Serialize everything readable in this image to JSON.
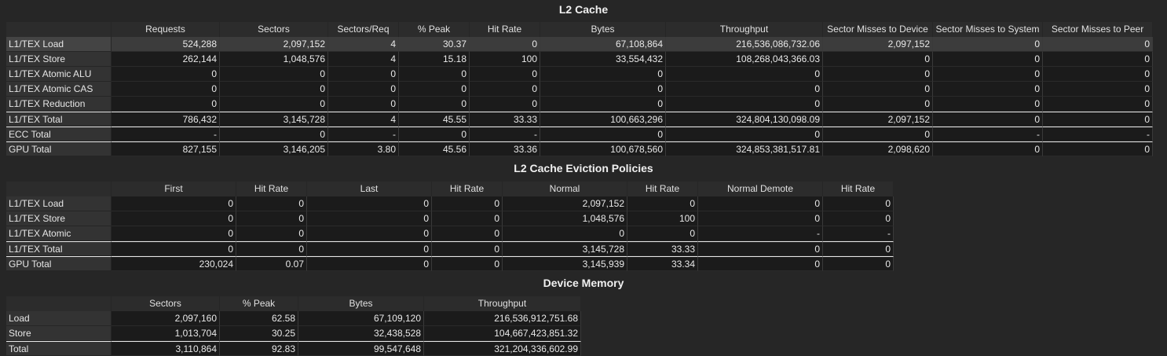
{
  "l2_cache": {
    "title": "L2 Cache",
    "columns": [
      "Requests",
      "Sectors",
      "Sectors/Req",
      "% Peak",
      "Hit Rate",
      "Bytes",
      "Throughput",
      "Sector Misses to Device",
      "Sector Misses to System",
      "Sector Misses to Peer"
    ],
    "rows": [
      {
        "label": "L1/TEX Load",
        "values": [
          "524,288",
          "2,097,152",
          "4",
          "30.37",
          "0",
          "67,108,864",
          "216,536,086,732.06",
          "2,097,152",
          "0",
          "0"
        ]
      },
      {
        "label": "L1/TEX Store",
        "values": [
          "262,144",
          "1,048,576",
          "4",
          "15.18",
          "100",
          "33,554,432",
          "108,268,043,366.03",
          "0",
          "0",
          "0"
        ]
      },
      {
        "label": "L1/TEX Atomic ALU",
        "values": [
          "0",
          "0",
          "0",
          "0",
          "0",
          "0",
          "0",
          "0",
          "0",
          "0"
        ]
      },
      {
        "label": "L1/TEX Atomic CAS",
        "values": [
          "0",
          "0",
          "0",
          "0",
          "0",
          "0",
          "0",
          "0",
          "0",
          "0"
        ]
      },
      {
        "label": "L1/TEX Reduction",
        "values": [
          "0",
          "0",
          "0",
          "0",
          "0",
          "0",
          "0",
          "0",
          "0",
          "0"
        ]
      },
      {
        "label": "L1/TEX Total",
        "values": [
          "786,432",
          "3,145,728",
          "4",
          "45.55",
          "33.33",
          "100,663,296",
          "324,804,130,098.09",
          "2,097,152",
          "0",
          "0"
        ]
      },
      {
        "label": "ECC Total",
        "values": [
          "-",
          "0",
          "-",
          "0",
          "-",
          "0",
          "0",
          "0",
          "-",
          "-"
        ]
      },
      {
        "label": "GPU Total",
        "values": [
          "827,155",
          "3,146,205",
          "3.80",
          "45.56",
          "33.36",
          "100,678,560",
          "324,853,381,517.81",
          "2,098,620",
          "0",
          "0"
        ]
      }
    ]
  },
  "eviction": {
    "title": "L2 Cache Eviction Policies",
    "columns": [
      "First",
      "Hit Rate",
      "Last",
      "Hit Rate",
      "Normal",
      "Hit Rate",
      "Normal Demote",
      "Hit Rate"
    ],
    "rows": [
      {
        "label": "L1/TEX Load",
        "values": [
          "0",
          "0",
          "0",
          "0",
          "2,097,152",
          "0",
          "0",
          "0"
        ]
      },
      {
        "label": "L1/TEX Store",
        "values": [
          "0",
          "0",
          "0",
          "0",
          "1,048,576",
          "100",
          "0",
          "0"
        ]
      },
      {
        "label": "L1/TEX Atomic",
        "values": [
          "0",
          "0",
          "0",
          "0",
          "0",
          "0",
          "-",
          "-"
        ]
      },
      {
        "label": "L1/TEX Total",
        "values": [
          "0",
          "0",
          "0",
          "0",
          "3,145,728",
          "33.33",
          "0",
          "0"
        ]
      },
      {
        "label": "GPU Total",
        "values": [
          "230,024",
          "0.07",
          "0",
          "0",
          "3,145,939",
          "33.34",
          "0",
          "0"
        ]
      }
    ]
  },
  "device_memory": {
    "title": "Device Memory",
    "columns": [
      "Sectors",
      "% Peak",
      "Bytes",
      "Throughput"
    ],
    "rows": [
      {
        "label": "Load",
        "values": [
          "2,097,160",
          "62.58",
          "67,109,120",
          "216,536,912,751.68"
        ]
      },
      {
        "label": "Store",
        "values": [
          "1,013,704",
          "30.25",
          "32,438,528",
          "104,667,423,851.32"
        ]
      },
      {
        "label": "Total",
        "values": [
          "3,110,864",
          "92.83",
          "99,547,648",
          "321,204,336,602.99"
        ]
      }
    ]
  }
}
